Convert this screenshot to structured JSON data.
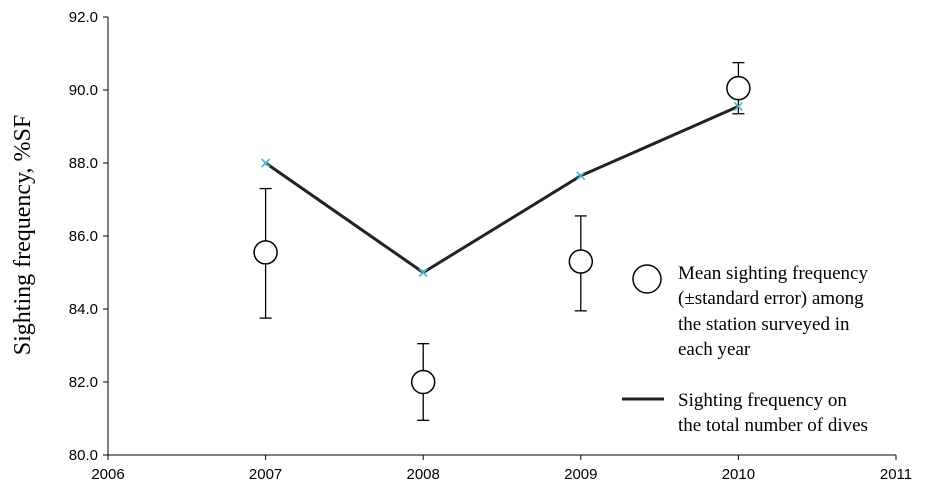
{
  "chart_data": {
    "type": "scatter",
    "title": "",
    "xlabel": "",
    "ylabel": "Sighting frequency, %SF",
    "xlim": [
      2006,
      2011
    ],
    "ylim": [
      80.0,
      92.0
    ],
    "x_ticks": [
      "2006",
      "2007",
      "2008",
      "2009",
      "2010",
      "2011"
    ],
    "y_ticks": [
      "80.0",
      "82.0",
      "84.0",
      "86.0",
      "88.0",
      "90.0",
      "92.0"
    ],
    "grid": false,
    "legend_position": "right",
    "series": [
      {
        "name": "Mean sighting frequency (±standard error) among the station surveyed in each year",
        "kind": "circle-errorbar",
        "points": [
          {
            "x": 2007,
            "y": 85.55,
            "err_low": 83.75,
            "err_high": 87.3
          },
          {
            "x": 2008,
            "y": 82.0,
            "err_low": 80.95,
            "err_high": 83.05
          },
          {
            "x": 2009,
            "y": 85.3,
            "err_low": 83.95,
            "err_high": 86.55
          },
          {
            "x": 2010,
            "y": 90.05,
            "err_low": 89.35,
            "err_high": 90.75
          }
        ]
      },
      {
        "name": "Sighting frequency on the total number of dives",
        "kind": "line",
        "points": [
          {
            "x": 2007,
            "y": 88.0
          },
          {
            "x": 2008,
            "y": 85.0
          },
          {
            "x": 2009,
            "y": 87.65
          },
          {
            "x": 2010,
            "y": 89.55
          }
        ]
      }
    ],
    "legend": {
      "circle_lines": [
        "Mean sighting frequency",
        "(±standard error) among",
        "the station surveyed in",
        "each year"
      ],
      "line_lines": [
        "Sighting frequency on",
        "the total number of dives"
      ]
    },
    "colors": {
      "line": "#222222",
      "marker_x": "#4fb8cf",
      "axis": "#000000"
    }
  }
}
